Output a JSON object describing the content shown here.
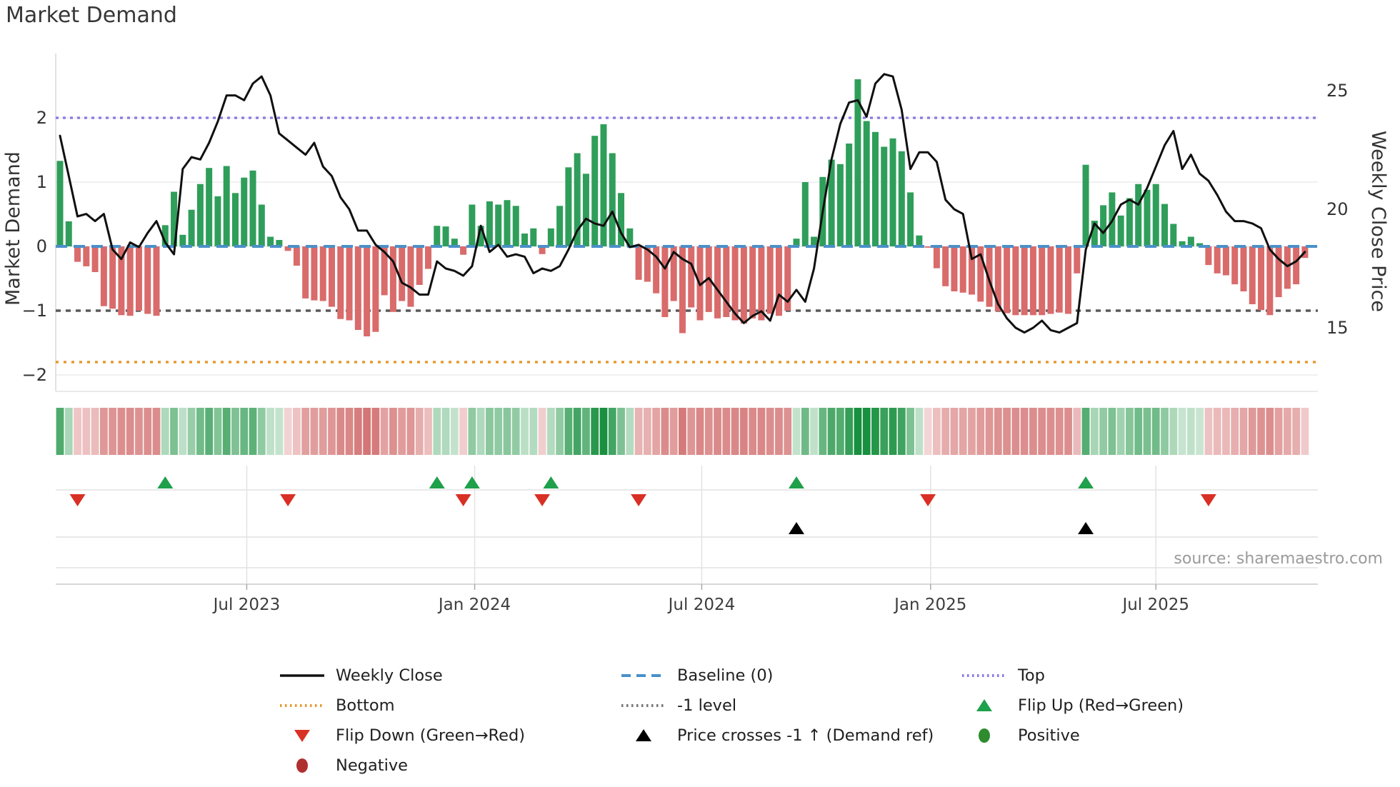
{
  "title": "Market Demand",
  "source": "source: sharemaestro.com",
  "axes": {
    "left_title": "Market Demand",
    "right_title": "Weekly Close Price",
    "left_ticks": [
      2,
      1,
      0,
      -1,
      -2
    ],
    "right_ticks": [
      25,
      20,
      15
    ]
  },
  "ref_lines": {
    "top": {
      "label": "Top",
      "value": 2.0,
      "color": "#8678e0"
    },
    "baseline": {
      "label": "Baseline (0)",
      "value": 0.0,
      "color": "#4a90c9"
    },
    "minus1": {
      "label": "-1 level",
      "value": -1.0,
      "color": "#5a5a5a"
    },
    "bottom": {
      "label": "Bottom",
      "value": -1.8,
      "color": "#e8982f"
    }
  },
  "colors": {
    "bar_positive": "#2f9e5a",
    "bar_negative": "#d96b6b",
    "price_line": "#101010",
    "flip_up": "#1fa04b",
    "flip_down": "#d93025",
    "price_cross": "#000000",
    "positive_dot": "#2e8b2e",
    "negative_dot": "#b03030",
    "heat_green": "#18903f",
    "heat_red": "#c95454",
    "grid": "#ececf0",
    "axis_text": "#333333"
  },
  "chart_data": {
    "type": [
      "bar",
      "line",
      "heatmap"
    ],
    "title": "Market Demand",
    "xlabel": "",
    "ylabel_left": "Market Demand",
    "ylabel_right": "Weekly Close Price",
    "ylim_demand": [
      -2.25,
      3.0
    ],
    "ylim_price": [
      12.3,
      26.6
    ],
    "grid": "horizontal-light",
    "legend_position": "bottom",
    "x_ticks": {
      "labels": [
        "Jul 2023",
        "Jan 2024",
        "Jul 2024",
        "Jan 2025",
        "Jul 2025"
      ],
      "week_positions": [
        21.3,
        47.3,
        73.2,
        99.3,
        125.0
      ]
    },
    "series": [
      {
        "name": "Market Demand (weekly bars)",
        "values": [
          1.33,
          0.39,
          -0.24,
          -0.31,
          -0.4,
          -0.93,
          -0.97,
          -1.07,
          -1.08,
          -1.0,
          -1.05,
          -1.08,
          0.33,
          0.85,
          0.18,
          0.57,
          0.97,
          1.22,
          0.78,
          1.25,
          0.83,
          1.07,
          1.18,
          0.65,
          0.15,
          0.1,
          -0.07,
          -0.3,
          -0.81,
          -0.84,
          -0.85,
          -0.94,
          -1.13,
          -1.15,
          -1.3,
          -1.4,
          -1.33,
          -0.76,
          -1.02,
          -0.85,
          -0.94,
          -0.6,
          -0.35,
          0.32,
          0.31,
          0.12,
          -0.13,
          0.65,
          0.32,
          0.7,
          0.65,
          0.72,
          0.63,
          0.2,
          0.28,
          -0.12,
          0.28,
          0.63,
          1.23,
          1.45,
          1.13,
          1.72,
          1.9,
          1.45,
          0.83,
          0.28,
          -0.52,
          -0.55,
          -0.73,
          -1.1,
          -0.85,
          -1.35,
          -0.95,
          -1.15,
          -1.02,
          -1.12,
          -1.1,
          -1.15,
          -1.2,
          -1.12,
          -1.15,
          -1.05,
          -1.08,
          -1.0,
          0.12,
          1.0,
          0.15,
          1.08,
          1.35,
          1.28,
          1.6,
          2.6,
          1.95,
          1.78,
          1.55,
          1.68,
          1.48,
          0.84,
          0.17,
          -0.02,
          -0.34,
          -0.62,
          -0.7,
          -0.72,
          -0.75,
          -0.86,
          -0.94,
          -1.01,
          -1.04,
          -1.07,
          -1.07,
          -1.07,
          -1.07,
          -1.05,
          -1.03,
          -1.05,
          -0.42,
          1.27,
          0.4,
          0.64,
          0.84,
          0.48,
          0.75,
          0.97,
          0.88,
          0.97,
          0.66,
          0.35,
          0.08,
          0.15,
          0.05,
          -0.29,
          -0.42,
          -0.45,
          -0.59,
          -0.7,
          -0.9,
          -0.99,
          -1.07,
          -0.79,
          -0.66,
          -0.59,
          -0.18
        ]
      },
      {
        "name": "Weekly Close",
        "values": [
          23.1,
          21.4,
          19.7,
          19.8,
          19.5,
          19.8,
          18.3,
          17.9,
          18.6,
          18.4,
          19.0,
          19.5,
          18.6,
          18.1,
          21.7,
          22.2,
          22.1,
          22.8,
          23.7,
          24.8,
          24.8,
          24.6,
          25.3,
          25.6,
          24.8,
          23.2,
          22.9,
          22.6,
          22.3,
          22.8,
          21.8,
          21.4,
          20.5,
          20.0,
          19.1,
          19.1,
          18.5,
          18.2,
          17.8,
          16.9,
          16.7,
          16.4,
          16.4,
          17.8,
          17.5,
          17.4,
          17.2,
          17.6,
          19.3,
          18.2,
          18.5,
          18.0,
          18.1,
          18.0,
          17.3,
          17.5,
          17.4,
          17.6,
          18.3,
          19.1,
          19.6,
          19.4,
          19.3,
          19.9,
          19.0,
          18.4,
          18.5,
          18.3,
          18.0,
          17.5,
          18.2,
          17.9,
          17.7,
          16.8,
          17.1,
          16.6,
          16.1,
          15.6,
          15.2,
          15.5,
          15.7,
          15.3,
          16.4,
          16.1,
          16.6,
          16.1,
          17.5,
          19.9,
          22.1,
          23.6,
          24.5,
          24.6,
          23.9,
          25.3,
          25.7,
          25.6,
          24.2,
          21.7,
          22.4,
          22.4,
          22.0,
          20.4,
          20.0,
          19.8,
          17.9,
          18.1,
          17.0,
          16.0,
          15.4,
          15.0,
          14.8,
          15.0,
          15.3,
          14.9,
          14.8,
          15.0,
          15.2,
          18.3,
          19.4,
          19.0,
          19.5,
          20.2,
          20.4,
          20.2,
          20.9,
          21.8,
          22.7,
          23.3,
          21.7,
          22.3,
          21.5,
          21.2,
          20.6,
          19.9,
          19.5,
          19.5,
          19.4,
          19.2,
          18.3,
          17.9,
          17.6,
          17.8,
          18.2
        ]
      }
    ],
    "heatmap": "same sign/intensity as Market Demand bars, one cell per week",
    "markers": {
      "flip_up_weeks": [
        12,
        43,
        47,
        56,
        84,
        117
      ],
      "flip_down_weeks": [
        2,
        26,
        46,
        55,
        66,
        99,
        131
      ],
      "price_cross_weeks": [
        84,
        117
      ]
    }
  },
  "legend": {
    "items": [
      {
        "swatch": "line-solid",
        "color": "#111111",
        "label": "Weekly Close"
      },
      {
        "swatch": "line-dashed",
        "color": "#4a90c9",
        "label": "Baseline (0)"
      },
      {
        "swatch": "line-dotted",
        "color": "#8678e0",
        "label": "Top"
      },
      {
        "swatch": "line-dotted",
        "color": "#e8982f",
        "label": "Bottom"
      },
      {
        "swatch": "line-dotted",
        "color": "#777777",
        "label": "-1 level"
      },
      {
        "swatch": "triangle-up",
        "color": "#1fa04b",
        "label": "Flip Up (Red→Green)"
      },
      {
        "swatch": "triangle-down",
        "color": "#d93025",
        "label": "Flip Down (Green→Red)"
      },
      {
        "swatch": "triangle-up",
        "color": "#000000",
        "label": "Price crosses -1 ↑ (Demand ref)"
      },
      {
        "swatch": "circle",
        "color": "#2e8b2e",
        "label": "Positive"
      },
      {
        "swatch": "circle",
        "color": "#b03030",
        "label": "Negative"
      }
    ]
  }
}
